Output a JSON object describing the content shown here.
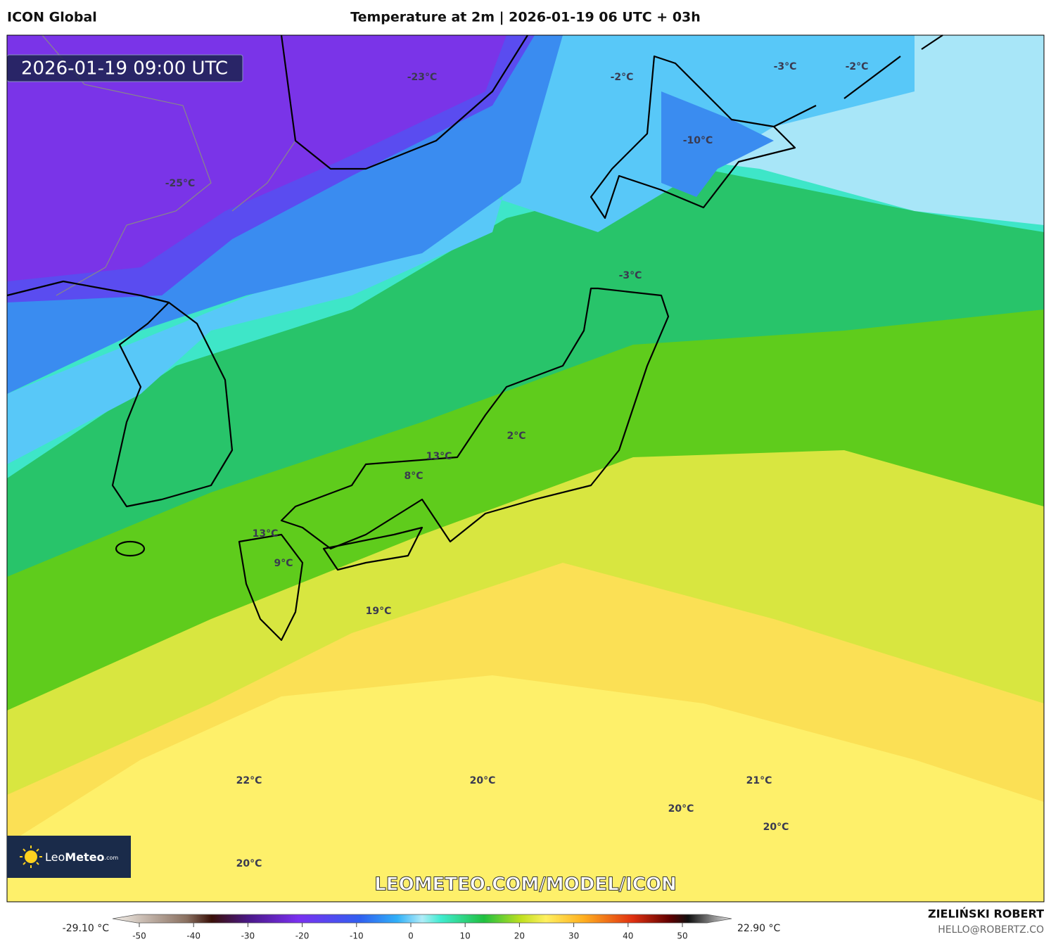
{
  "header": {
    "model": "ICON Global",
    "title": "Temperature at 2m | 2026-01-19 06 UTC + 03h"
  },
  "map": {
    "valid_time": "2026-01-19 09:00 UTC",
    "labels": [
      "-23°C",
      "-2°C",
      "-3°C",
      "-2°C",
      "-10°C",
      "-25°C",
      "-3°C",
      "2°C",
      "13°C",
      "8°C",
      "13°C",
      "9°C",
      "19°C",
      "22°C",
      "20°C",
      "21°C",
      "20°C",
      "20°C",
      "20°C"
    ],
    "watermark": "LEOMETEO.COM/MODEL/ICON"
  },
  "logo": {
    "part1": "Leo",
    "part2": "Meteo",
    "part3": ".com"
  },
  "colorbar": {
    "min_label": "-29.10 °C",
    "max_label": "22.90 °C",
    "ticks": [
      -50,
      -40,
      -30,
      -20,
      -10,
      0,
      10,
      20,
      30,
      40,
      50
    ]
  },
  "footer": {
    "author": "ZIELIŃSKI ROBERT",
    "contact": "HELLO@ROBERTZ.CO"
  }
}
